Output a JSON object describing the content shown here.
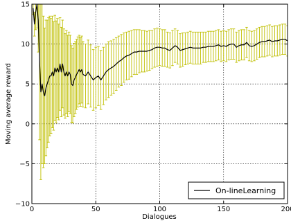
{
  "chart_data": {
    "type": "line",
    "title": "",
    "xlabel": "Dialogues",
    "ylabel": "Moving average reward",
    "xlim": [
      0,
      200
    ],
    "ylim": [
      -10,
      15
    ],
    "xticks": [
      0,
      50,
      100,
      150,
      200
    ],
    "yticks": [
      -10,
      -5,
      0,
      5,
      10,
      15
    ],
    "xtick_labels": [
      "0",
      "50",
      "100",
      "150",
      "200"
    ],
    "ytick_labels": [
      "−10",
      "−5",
      "0",
      "5",
      "10",
      "15"
    ],
    "grid": true,
    "legend": {
      "position": "bottom-right",
      "entries": [
        "On-lineLearning"
      ]
    },
    "colors": {
      "line": "#000000",
      "error_bars": "#bfbf00"
    },
    "series": [
      {
        "name": "On-lineLearning",
        "x": [
          1,
          2,
          3,
          4,
          5,
          6,
          7,
          8,
          9,
          10,
          11,
          12,
          13,
          14,
          15,
          16,
          17,
          18,
          19,
          20,
          21,
          22,
          23,
          24,
          25,
          26,
          27,
          28,
          29,
          30,
          31,
          32,
          33,
          34,
          35,
          36,
          37,
          38,
          39,
          40,
          42,
          44,
          46,
          48,
          50,
          52,
          54,
          56,
          58,
          60,
          62,
          64,
          66,
          68,
          70,
          72,
          74,
          76,
          78,
          80,
          82,
          84,
          86,
          88,
          90,
          92,
          94,
          96,
          98,
          100,
          102,
          104,
          106,
          108,
          110,
          112,
          114,
          116,
          118,
          120,
          122,
          124,
          126,
          128,
          130,
          132,
          134,
          136,
          138,
          140,
          142,
          144,
          146,
          148,
          150,
          152,
          154,
          156,
          158,
          160,
          162,
          164,
          166,
          168,
          170,
          172,
          174,
          176,
          178,
          180,
          182,
          184,
          186,
          188,
          190,
          192,
          194,
          196,
          198,
          200
        ],
        "y": [
          14.5,
          12.5,
          14.0,
          15.0,
          13.0,
          8.0,
          4.0,
          5.0,
          4.0,
          3.5,
          4.5,
          5.0,
          5.5,
          6.0,
          6.0,
          6.5,
          6.0,
          7.0,
          6.5,
          7.0,
          6.5,
          7.5,
          6.5,
          7.5,
          6.5,
          6.0,
          6.5,
          6.0,
          6.5,
          6.2,
          5.0,
          4.8,
          5.5,
          5.8,
          6.2,
          6.5,
          6.8,
          6.5,
          6.8,
          6.2,
          6.0,
          6.5,
          6.0,
          5.5,
          5.8,
          6.0,
          5.5,
          6.0,
          6.5,
          6.8,
          7.0,
          7.2,
          7.5,
          7.8,
          8.0,
          8.3,
          8.5,
          8.6,
          8.8,
          9.0,
          9.0,
          9.1,
          9.1,
          9.1,
          9.1,
          9.2,
          9.3,
          9.5,
          9.6,
          9.6,
          9.5,
          9.5,
          9.3,
          9.2,
          9.5,
          9.8,
          9.6,
          9.2,
          9.3,
          9.4,
          9.5,
          9.6,
          9.5,
          9.5,
          9.5,
          9.5,
          9.6,
          9.6,
          9.7,
          9.7,
          9.7,
          9.8,
          9.9,
          9.7,
          9.8,
          9.7,
          9.9,
          10.0,
          10.0,
          9.6,
          9.8,
          9.9,
          9.9,
          10.2,
          9.8,
          9.7,
          9.8,
          10.0,
          10.2,
          10.3,
          10.3,
          10.4,
          10.5,
          10.3,
          10.4,
          10.4,
          10.5,
          10.6,
          10.6,
          10.4
        ],
        "yerr": [
          0.8,
          1.5,
          2.2,
          3.0,
          4.0,
          10.0,
          11.0,
          10.0,
          9.5,
          8.5,
          8.5,
          8.0,
          7.8,
          7.5,
          7.2,
          7.0,
          6.8,
          6.6,
          6.4,
          6.2,
          6.0,
          5.8,
          5.6,
          5.5,
          5.4,
          5.3,
          5.2,
          5.1,
          5.0,
          4.9,
          4.8,
          4.7,
          4.6,
          4.5,
          4.4,
          4.4,
          4.3,
          4.3,
          4.2,
          4.1,
          4.0,
          4.0,
          3.9,
          3.8,
          3.8,
          3.7,
          3.7,
          3.6,
          3.5,
          3.5,
          3.4,
          3.4,
          3.3,
          3.2,
          3.2,
          3.1,
          3.0,
          3.0,
          2.9,
          2.8,
          2.8,
          2.7,
          2.6,
          2.6,
          2.5,
          2.5,
          2.4,
          2.4,
          2.4,
          2.3,
          2.3,
          2.3,
          2.2,
          2.2,
          2.2,
          2.1,
          2.1,
          2.1,
          2.1,
          2.0,
          2.0,
          2.0,
          2.0,
          2.0,
          2.0,
          2.0,
          1.9,
          1.9,
          1.9,
          1.9,
          1.9,
          1.9,
          1.9,
          1.9,
          1.9,
          1.9,
          1.9,
          1.9,
          1.9,
          1.9,
          1.9,
          1.9,
          1.9,
          1.9,
          1.9,
          1.9,
          1.9,
          1.9,
          1.9,
          1.9,
          1.9,
          1.9,
          1.9,
          1.9,
          1.9,
          1.9,
          1.9,
          1.9,
          1.9,
          1.9
        ]
      }
    ]
  }
}
